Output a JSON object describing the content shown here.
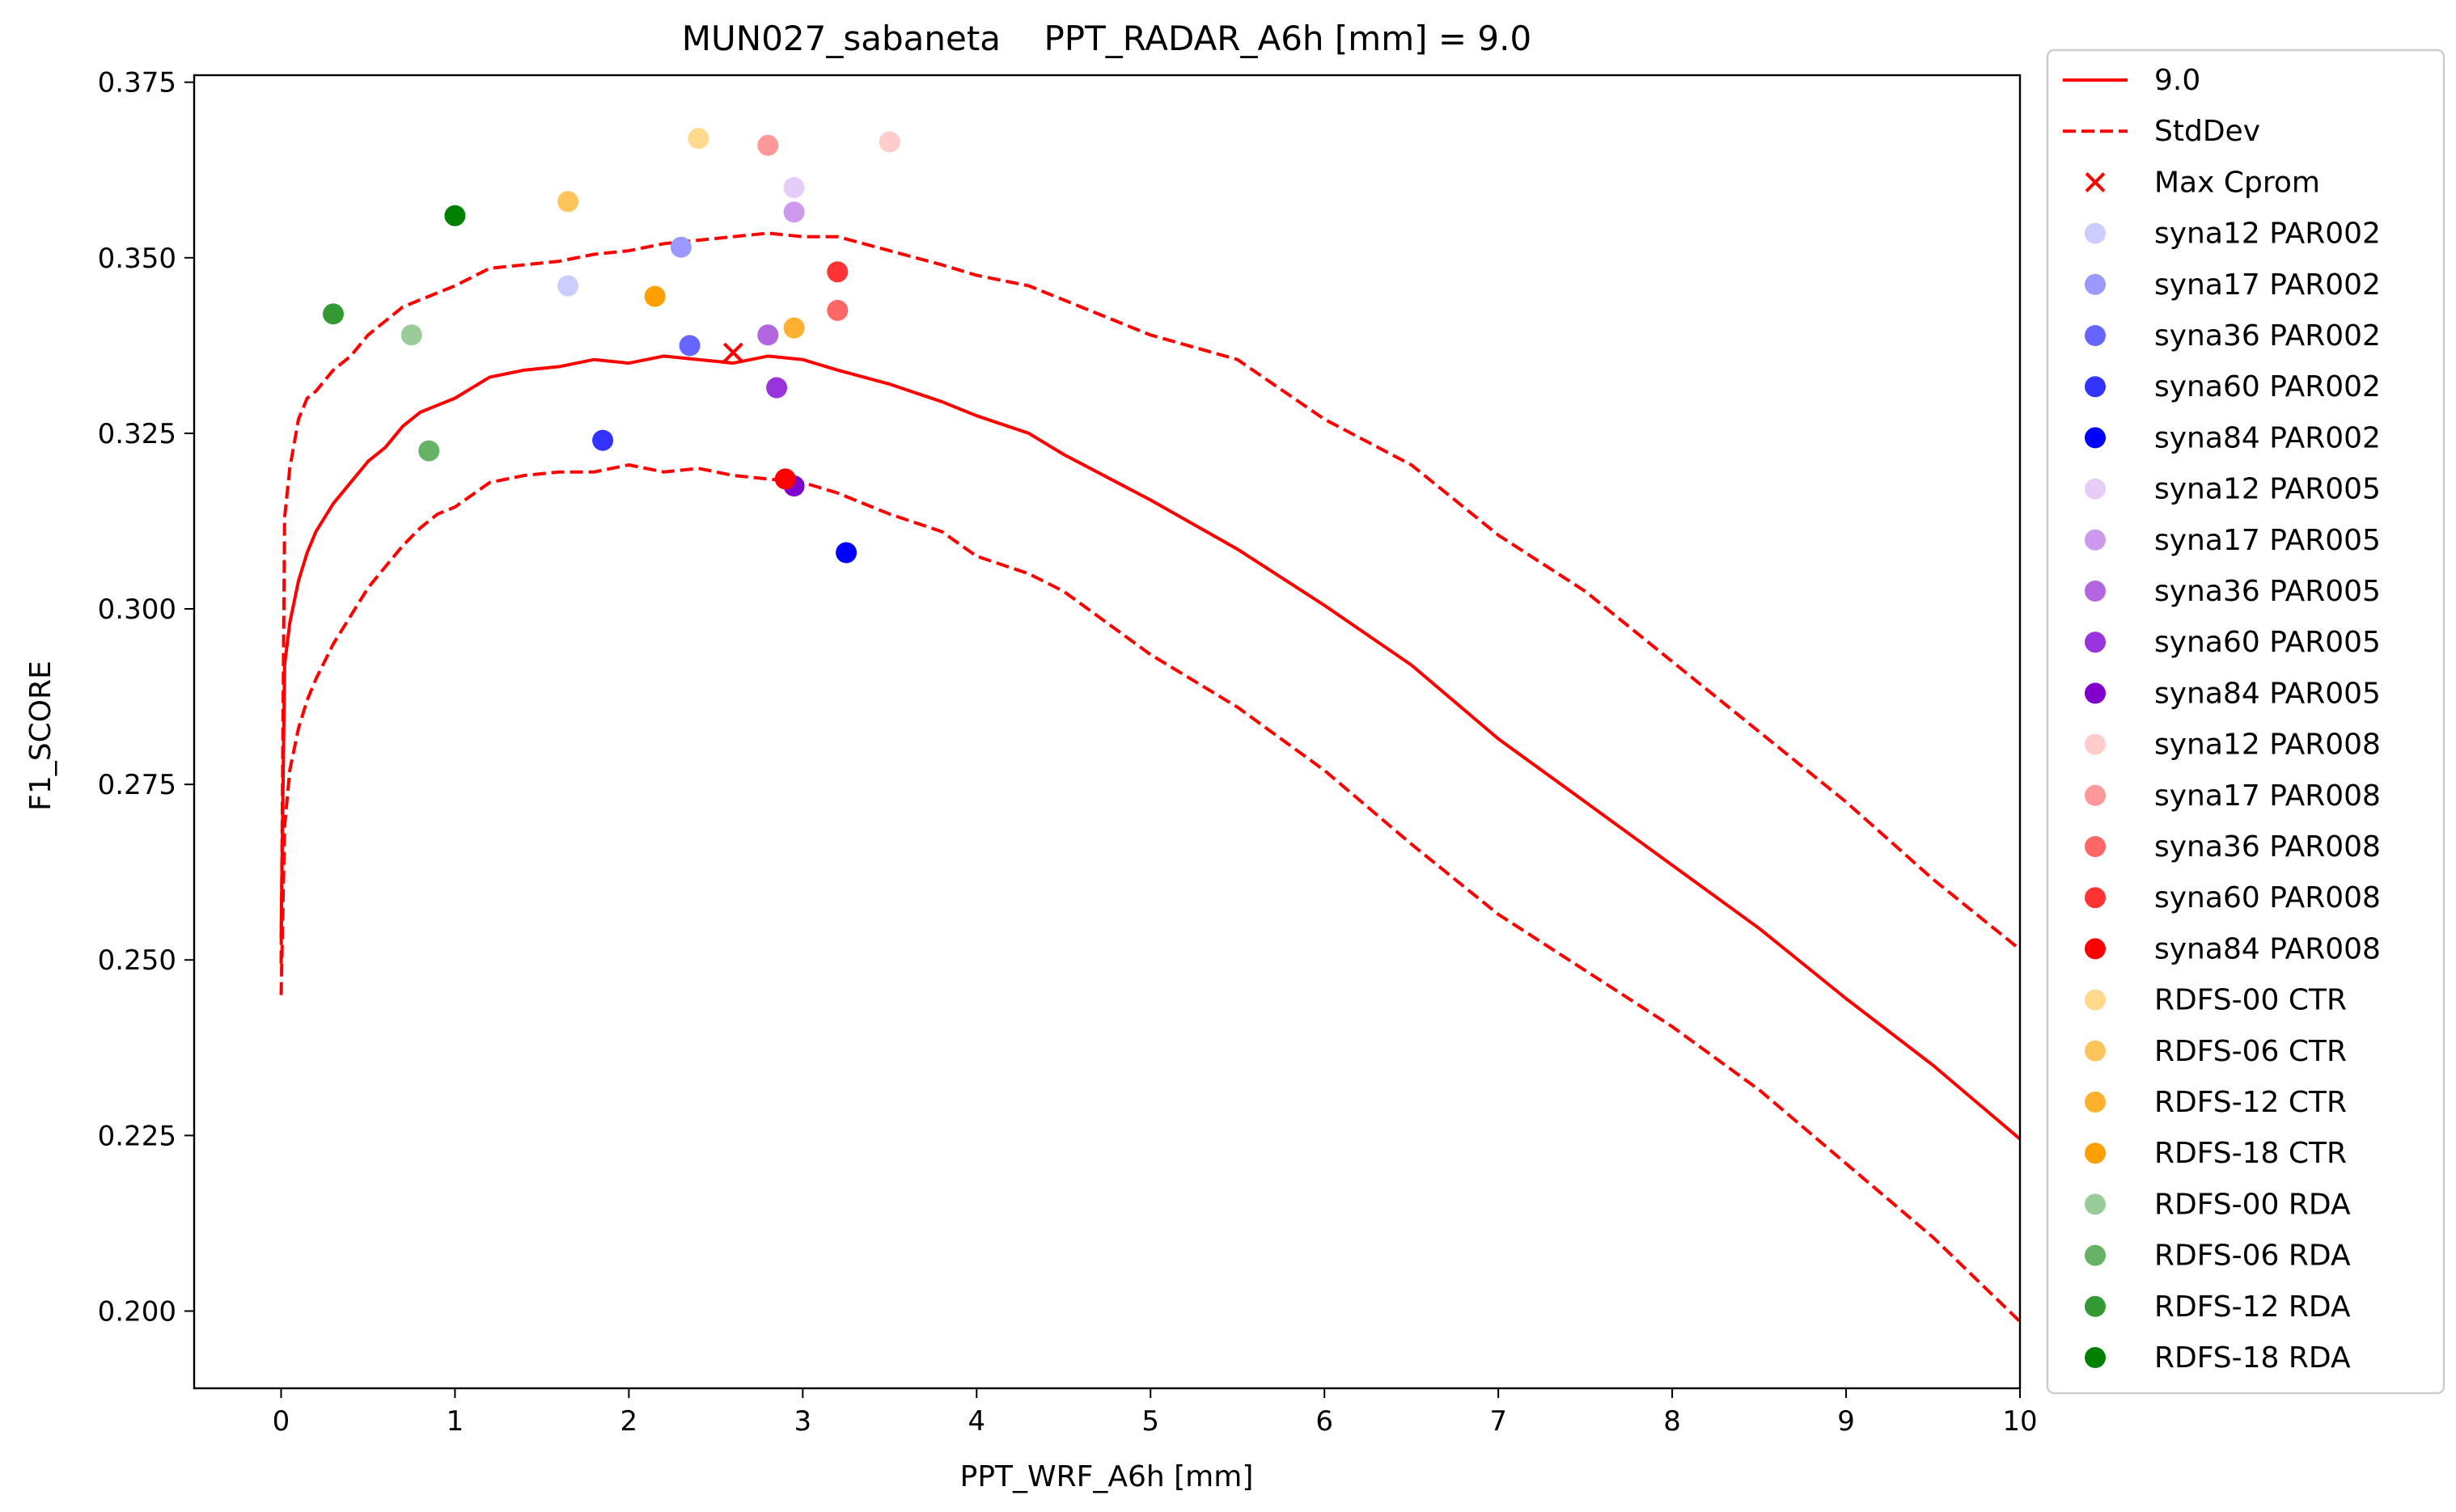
{
  "chart_data": {
    "type": "line",
    "title": "MUN027_sabaneta    PPT_RADAR_A6h [mm] = 9.0",
    "xlabel": "PPT_WRF_A6h [mm]",
    "ylabel": "F1_SCORE",
    "xlim": [
      -0.5,
      10
    ],
    "ylim": [
      0.189,
      0.376
    ],
    "xticks": [
      0,
      1,
      2,
      3,
      4,
      5,
      6,
      7,
      8,
      9,
      10
    ],
    "xtick_labels": [
      "0",
      "1",
      "2",
      "3",
      "4",
      "5",
      "6",
      "7",
      "8",
      "9",
      "10"
    ],
    "yticks": [
      0.2,
      0.225,
      0.25,
      0.275,
      0.3,
      0.325,
      0.35,
      0.375
    ],
    "ytick_labels": [
      "0.200",
      "0.225",
      "0.250",
      "0.275",
      "0.300",
      "0.325",
      "0.350",
      "0.375"
    ],
    "grid": false,
    "legend_position": "outside-right",
    "lines": [
      {
        "name": "9.0",
        "color": "#ff0000",
        "style": "solid",
        "x": [
          0,
          0.02,
          0.05,
          0.1,
          0.15,
          0.2,
          0.3,
          0.4,
          0.5,
          0.6,
          0.7,
          0.8,
          0.9,
          1.0,
          1.2,
          1.4,
          1.6,
          1.8,
          2.0,
          2.2,
          2.4,
          2.6,
          2.8,
          3.0,
          3.2,
          3.5,
          3.8,
          4.0,
          4.3,
          4.5,
          5.0,
          5.5,
          6.0,
          6.5,
          7.0,
          7.5,
          8.0,
          8.5,
          9.0,
          9.5,
          10.0
        ],
        "y": [
          0.253,
          0.292,
          0.298,
          0.304,
          0.308,
          0.311,
          0.315,
          0.318,
          0.321,
          0.323,
          0.326,
          0.328,
          0.329,
          0.33,
          0.333,
          0.334,
          0.3345,
          0.3355,
          0.335,
          0.336,
          0.3355,
          0.335,
          0.336,
          0.3355,
          0.334,
          0.332,
          0.3295,
          0.3275,
          0.325,
          0.322,
          0.3155,
          0.3085,
          0.3005,
          0.292,
          0.2815,
          0.2725,
          0.2635,
          0.2545,
          0.2445,
          0.235,
          0.2245
        ]
      },
      {
        "name": "StdDev",
        "color": "#ff0000",
        "style": "dashed",
        "x": [
          0,
          0.02,
          0.05,
          0.1,
          0.15,
          0.2,
          0.3,
          0.4,
          0.5,
          0.6,
          0.7,
          0.8,
          0.9,
          1.0,
          1.2,
          1.4,
          1.6,
          1.8,
          2.0,
          2.2,
          2.4,
          2.6,
          2.8,
          3.0,
          3.2,
          3.5,
          3.8,
          4.0,
          4.3,
          4.5,
          5.0,
          5.5,
          6.0,
          6.5,
          7.0,
          7.5,
          8.0,
          8.5,
          9.0,
          9.5,
          10.0
        ],
        "y": [
          0.2495,
          0.313,
          0.32,
          0.327,
          0.33,
          0.331,
          0.334,
          0.336,
          0.339,
          0.341,
          0.343,
          0.344,
          0.345,
          0.346,
          0.3485,
          0.349,
          0.3495,
          0.3505,
          0.351,
          0.352,
          0.3525,
          0.353,
          0.3535,
          0.353,
          0.353,
          0.351,
          0.349,
          0.3475,
          0.346,
          0.344,
          0.339,
          0.3355,
          0.327,
          0.3205,
          0.3105,
          0.3025,
          0.2925,
          0.2825,
          0.2725,
          0.2615,
          0.2515
        ]
      },
      {
        "name": "",
        "color": "#ff0000",
        "style": "dashed",
        "x": [
          0,
          0.02,
          0.05,
          0.1,
          0.15,
          0.2,
          0.3,
          0.4,
          0.5,
          0.6,
          0.7,
          0.8,
          0.9,
          1.0,
          1.2,
          1.4,
          1.6,
          1.8,
          2.0,
          2.2,
          2.4,
          2.6,
          2.8,
          3.0,
          3.2,
          3.5,
          3.8,
          4.0,
          4.3,
          4.5,
          5.0,
          5.5,
          6.0,
          6.5,
          7.0,
          7.5,
          8.0,
          8.5,
          9.0,
          9.5,
          10.0
        ],
        "y": [
          0.245,
          0.269,
          0.277,
          0.283,
          0.287,
          0.29,
          0.295,
          0.299,
          0.303,
          0.306,
          0.309,
          0.3115,
          0.3135,
          0.3145,
          0.318,
          0.319,
          0.3195,
          0.3195,
          0.3205,
          0.3195,
          0.32,
          0.319,
          0.3185,
          0.318,
          0.3165,
          0.3135,
          0.311,
          0.3075,
          0.305,
          0.3025,
          0.2935,
          0.286,
          0.277,
          0.2665,
          0.2565,
          0.2485,
          0.2405,
          0.2315,
          0.221,
          0.2105,
          0.1985
        ]
      }
    ],
    "max_marker": {
      "name": "Max Cprom",
      "x": 2.6,
      "y": 0.3365,
      "color": "#ff0000",
      "symbol": "x"
    },
    "points": [
      {
        "name": "syna12 PAR002",
        "color": "#ccccff",
        "x": 1.65,
        "y": 0.346
      },
      {
        "name": "syna17 PAR002",
        "color": "#9999ff",
        "x": 2.3,
        "y": 0.3515
      },
      {
        "name": "syna36 PAR002",
        "color": "#6666ff",
        "x": 2.35,
        "y": 0.3375
      },
      {
        "name": "syna60 PAR002",
        "color": "#3333ff",
        "x": 1.85,
        "y": 0.324
      },
      {
        "name": "syna84 PAR002",
        "color": "#0000ff",
        "x": 3.25,
        "y": 0.308
      },
      {
        "name": "syna12 PAR005",
        "color": "#e6cdf7",
        "x": 2.95,
        "y": 0.36
      },
      {
        "name": "syna17 PAR005",
        "color": "#cc99ee",
        "x": 2.95,
        "y": 0.3565
      },
      {
        "name": "syna36 PAR005",
        "color": "#b266e0",
        "x": 2.8,
        "y": 0.339
      },
      {
        "name": "syna60 PAR005",
        "color": "#9933dd",
        "x": 2.85,
        "y": 0.3315
      },
      {
        "name": "syna84 PAR005",
        "color": "#8000cc",
        "x": 2.95,
        "y": 0.3175
      },
      {
        "name": "syna12 PAR008",
        "color": "#ffcccc",
        "x": 3.5,
        "y": 0.3665
      },
      {
        "name": "syna17 PAR008",
        "color": "#ff9999",
        "x": 2.8,
        "y": 0.366
      },
      {
        "name": "syna36 PAR008",
        "color": "#ff6666",
        "x": 3.2,
        "y": 0.3425
      },
      {
        "name": "syna60 PAR008",
        "color": "#ff3333",
        "x": 3.2,
        "y": 0.348
      },
      {
        "name": "syna84 PAR008",
        "color": "#ff0000",
        "x": 2.9,
        "y": 0.3185
      },
      {
        "name": "RDFS-00 CTR",
        "color": "#ffd98c",
        "x": 2.4,
        "y": 0.367
      },
      {
        "name": "RDFS-06 CTR",
        "color": "#ffc45c",
        "x": 1.65,
        "y": 0.358
      },
      {
        "name": "RDFS-12 CTR",
        "color": "#ffb02e",
        "x": 2.95,
        "y": 0.34
      },
      {
        "name": "RDFS-18 CTR",
        "color": "#ffa000",
        "x": 2.15,
        "y": 0.3445
      },
      {
        "name": "RDFS-00 RDA",
        "color": "#99cc99",
        "x": 0.75,
        "y": 0.339
      },
      {
        "name": "RDFS-06 RDA",
        "color": "#66b266",
        "x": 0.85,
        "y": 0.3225
      },
      {
        "name": "RDFS-12 RDA",
        "color": "#339933",
        "x": 0.3,
        "y": 0.342
      },
      {
        "name": "RDFS-18 RDA",
        "color": "#008000",
        "x": 1.0,
        "y": 0.356
      }
    ],
    "legend": [
      {
        "label": "9.0",
        "kind": "line-solid",
        "color": "#ff0000"
      },
      {
        "label": "StdDev",
        "kind": "line-dashed",
        "color": "#ff0000"
      },
      {
        "label": "Max Cprom",
        "kind": "x",
        "color": "#ff0000"
      },
      {
        "label": "syna12 PAR002",
        "kind": "dot",
        "color": "#ccccff"
      },
      {
        "label": "syna17 PAR002",
        "kind": "dot",
        "color": "#9999ff"
      },
      {
        "label": "syna36 PAR002",
        "kind": "dot",
        "color": "#6666ff"
      },
      {
        "label": "syna60 PAR002",
        "kind": "dot",
        "color": "#3333ff"
      },
      {
        "label": "syna84 PAR002",
        "kind": "dot",
        "color": "#0000ff"
      },
      {
        "label": "syna12 PAR005",
        "kind": "dot",
        "color": "#e6cdf7"
      },
      {
        "label": "syna17 PAR005",
        "kind": "dot",
        "color": "#cc99ee"
      },
      {
        "label": "syna36 PAR005",
        "kind": "dot",
        "color": "#b266e0"
      },
      {
        "label": "syna60 PAR005",
        "kind": "dot",
        "color": "#9933dd"
      },
      {
        "label": "syna84 PAR005",
        "kind": "dot",
        "color": "#8000cc"
      },
      {
        "label": "syna12 PAR008",
        "kind": "dot",
        "color": "#ffcccc"
      },
      {
        "label": "syna17 PAR008",
        "kind": "dot",
        "color": "#ff9999"
      },
      {
        "label": "syna36 PAR008",
        "kind": "dot",
        "color": "#ff6666"
      },
      {
        "label": "syna60 PAR008",
        "kind": "dot",
        "color": "#ff3333"
      },
      {
        "label": "syna84 PAR008",
        "kind": "dot",
        "color": "#ff0000"
      },
      {
        "label": " RDFS-00 CTR",
        "kind": "dot",
        "color": "#ffd98c"
      },
      {
        "label": " RDFS-06 CTR",
        "kind": "dot",
        "color": "#ffc45c"
      },
      {
        "label": " RDFS-12 CTR",
        "kind": "dot",
        "color": "#ffb02e"
      },
      {
        "label": " RDFS-18 CTR",
        "kind": "dot",
        "color": "#ffa000"
      },
      {
        "label": " RDFS-00 RDA",
        "kind": "dot",
        "color": "#99cc99"
      },
      {
        "label": " RDFS-06 RDA",
        "kind": "dot",
        "color": "#66b266"
      },
      {
        "label": " RDFS-12 RDA",
        "kind": "dot",
        "color": "#339933"
      },
      {
        "label": " RDFS-18 RDA",
        "kind": "dot",
        "color": "#008000"
      }
    ]
  }
}
